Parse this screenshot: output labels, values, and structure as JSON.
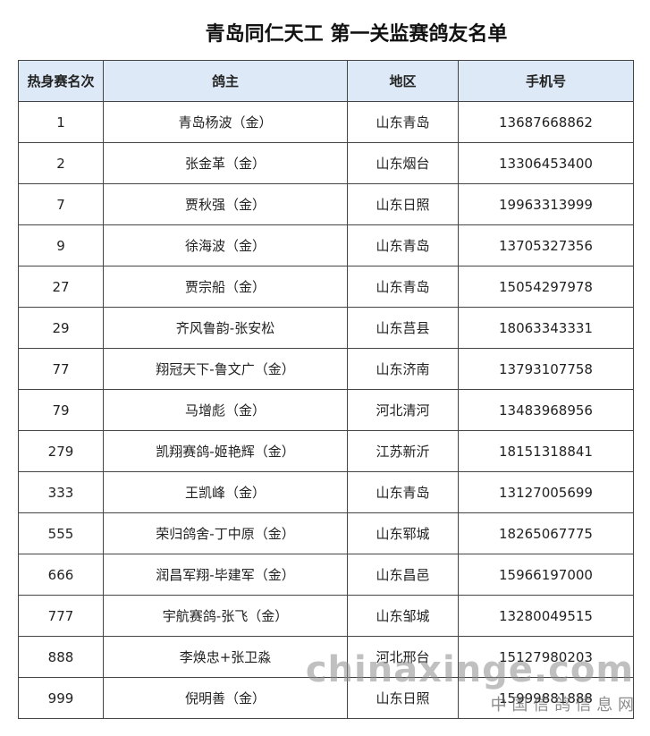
{
  "header": {
    "title": "青岛同仁天工  第一关监赛鸽友名单"
  },
  "table": {
    "columns": [
      "热身赛名次",
      "鸽主",
      "地区",
      "手机号"
    ],
    "rows": [
      [
        "1",
        "青岛杨波（金）",
        "山东青岛",
        "13687668862"
      ],
      [
        "2",
        "张金革（金）",
        "山东烟台",
        "13306453400"
      ],
      [
        "7",
        "贾秋强（金）",
        "山东日照",
        "19963313999"
      ],
      [
        "9",
        "徐海波（金）",
        "山东青岛",
        "13705327356"
      ],
      [
        "27",
        "贾宗船（金）",
        "山东青岛",
        "15054297978"
      ],
      [
        "29",
        "齐风鲁韵-张安松",
        "山东莒县",
        "18063343331"
      ],
      [
        "77",
        "翔冠天下-鲁文广（金）",
        "山东济南",
        "13793107758"
      ],
      [
        "79",
        "马增彪（金）",
        "河北清河",
        "13483968956"
      ],
      [
        "279",
        "凯翔赛鸽-姬艳辉（金）",
        "江苏新沂",
        "18151318841"
      ],
      [
        "333",
        "王凯峰（金）",
        "山东青岛",
        "13127005699"
      ],
      [
        "555",
        "荣归鸽舍-丁中原（金）",
        "山东郓城",
        "18265067775"
      ],
      [
        "666",
        "润昌军翔-毕建军（金）",
        "山东昌邑",
        "15966197000"
      ],
      [
        "777",
        "宇航赛鸽-张飞（金）",
        "山东邹城",
        "13280049515"
      ],
      [
        "888",
        "李焕忠+张卫淼",
        "河北邢台",
        "15127980203"
      ],
      [
        "999",
        "倪明善（金）",
        "山东日照",
        "15999881888"
      ]
    ]
  },
  "watermark": {
    "text": "chinaxinge.com",
    "subtext": "中 国 信 鸽 信 息 网"
  }
}
